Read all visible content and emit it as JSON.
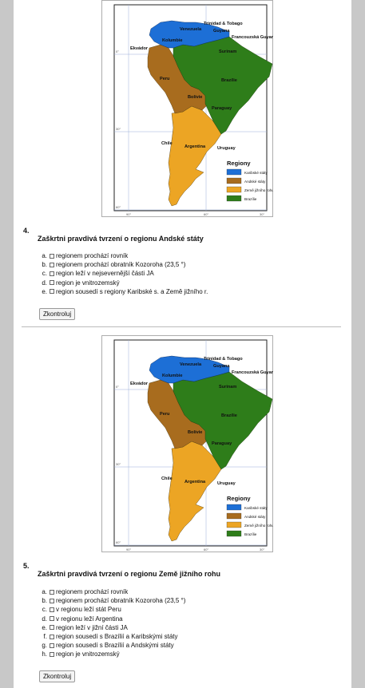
{
  "questions": [
    {
      "number": "4.",
      "title": "Zaškrtni pravdivá tvrzení o regionu Andské státy",
      "options": [
        {
          "letter": "a.",
          "text": "regionem prochází rovník"
        },
        {
          "letter": "b.",
          "text": "regionem prochází obratník Kozoroha (23,5 °)"
        },
        {
          "letter": "c.",
          "text": "region leží v nejsevernější části JA"
        },
        {
          "letter": "d.",
          "text": "region je vnitrozemský"
        },
        {
          "letter": "e.",
          "text": "region sousedí s regiony Karibské s. a Země jižního r."
        }
      ],
      "submit_label": "Zkontroluj"
    },
    {
      "number": "5.",
      "title": "Zaškrtni pravdivá tvrzení o regionu Země jižního rohu",
      "options": [
        {
          "letter": "a.",
          "text": "regionem prochází rovník"
        },
        {
          "letter": "b.",
          "text": "regionem prochází obratník Kozoroha (23,5 °)"
        },
        {
          "letter": "c.",
          "text": "v regionu leží stát Peru"
        },
        {
          "letter": "d.",
          "text": "v regionu leží Argentina"
        },
        {
          "letter": "e.",
          "text": "region leží v jižní části JA"
        },
        {
          "letter": "f.",
          "text": "region sousedí s Brazílií a Karibskými státy"
        },
        {
          "letter": "g.",
          "text": "region sousedí s Brazílií a Andskými státy"
        },
        {
          "letter": "h.",
          "text": "region je vnitrozemský"
        }
      ],
      "submit_label": "Zkontroluj"
    }
  ],
  "map": {
    "labels": {
      "trinidad": "Trinidad & Tobago",
      "venezuela": "Venezuela",
      "guyana": "Guyana",
      "francouzska_guyana": "Francouzská Guyana",
      "kolumbie": "Kolumbie",
      "surinam": "Surinam",
      "ekvador": "Ekvádor",
      "peru": "Peru",
      "brazilie": "Brazílie",
      "bolivie": "Bolívie",
      "paraguay": "Paraguay",
      "chile": "Chile",
      "argentina": "Argentina",
      "uruguay": "Uruguay"
    },
    "axis": {
      "lat_0": "0°",
      "lat_30": "30°",
      "lat_60": "60°",
      "lon_90": "90°",
      "lon_60": "60°",
      "lon_30": "30°"
    },
    "legend": {
      "title": "Regiony",
      "items": [
        {
          "label": "Karibské státy",
          "color": "#1d6fd6"
        },
        {
          "label": "Andské státy",
          "color": "#a86c1e"
        },
        {
          "label": "Země jižního rohu",
          "color": "#eca524"
        },
        {
          "label": "Brazílie",
          "color": "#2e7d1a"
        }
      ]
    }
  }
}
